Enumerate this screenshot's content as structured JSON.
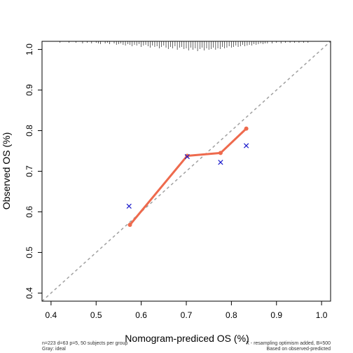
{
  "chart_data": {
    "type": "line",
    "title": "",
    "xlabel": "Nomogram-prediced OS (%)",
    "ylabel": "Observed OS (%)",
    "xlim": [
      0.38,
      1.02
    ],
    "ylim": [
      0.38,
      1.02
    ],
    "xticks": [
      0.4,
      0.5,
      0.6,
      0.7,
      0.8,
      0.9,
      1.0
    ],
    "xtick_labels": [
      "0.4",
      "0.5",
      "0.6",
      "0.7",
      "0.8",
      "0.9",
      "1.0"
    ],
    "yticks": [
      0.4,
      0.5,
      0.6,
      0.7,
      0.8,
      0.9,
      1.0
    ],
    "ytick_labels": [
      "0.4",
      "0.5",
      "0.6",
      "0.7",
      "0.8",
      "0.9",
      "1.0"
    ],
    "grid": false,
    "series": [
      {
        "style": "solid line with points",
        "color": "#ee6a4d",
        "x": [
          0.575,
          0.702,
          0.776,
          0.833
        ],
        "y": [
          0.568,
          0.738,
          0.745,
          0.805
        ]
      },
      {
        "style": "x markers",
        "color": "#1a1acc",
        "x": [
          0.573,
          0.702,
          0.776,
          0.833
        ],
        "y": [
          0.614,
          0.736,
          0.722,
          0.763
        ]
      },
      {
        "style": "dashed ideal line",
        "color": "#a0a0a0",
        "x": [
          0.38,
          1.02
        ],
        "y": [
          0.38,
          1.02
        ]
      }
    ],
    "rug_x": [
      0.42,
      0.44,
      0.455,
      0.47,
      0.48,
      0.49,
      0.5,
      0.505,
      0.51,
      0.52,
      0.525,
      0.53,
      0.54,
      0.545,
      0.55,
      0.555,
      0.56,
      0.565,
      0.57,
      0.575,
      0.58,
      0.585,
      0.59,
      0.595,
      0.6,
      0.605,
      0.61,
      0.615,
      0.62,
      0.625,
      0.63,
      0.635,
      0.64,
      0.645,
      0.65,
      0.655,
      0.66,
      0.665,
      0.67,
      0.675,
      0.68,
      0.685,
      0.69,
      0.695,
      0.7,
      0.705,
      0.71,
      0.715,
      0.72,
      0.725,
      0.73,
      0.735,
      0.74,
      0.745,
      0.75,
      0.755,
      0.76,
      0.765,
      0.77,
      0.775,
      0.78,
      0.785,
      0.79,
      0.795,
      0.8,
      0.805,
      0.81,
      0.815,
      0.82,
      0.825,
      0.83,
      0.835,
      0.84,
      0.845,
      0.85,
      0.855,
      0.86,
      0.865,
      0.87,
      0.875,
      0.88,
      0.89,
      0.9,
      0.91,
      0.92,
      0.93,
      0.94,
      0.95,
      0.96,
      0.97
    ],
    "rug_h": [
      2,
      2,
      2,
      3,
      2,
      3,
      2,
      3,
      4,
      3,
      2,
      4,
      3,
      5,
      4,
      3,
      5,
      6,
      4,
      5,
      7,
      5,
      6,
      4,
      8,
      6,
      5,
      7,
      9,
      6,
      8,
      7,
      10,
      8,
      6,
      9,
      11,
      8,
      10,
      7,
      12,
      9,
      8,
      11,
      10,
      13,
      9,
      12,
      10,
      14,
      11,
      9,
      13,
      10,
      12,
      11,
      9,
      12,
      10,
      11,
      8,
      10,
      9,
      7,
      9,
      8,
      6,
      8,
      7,
      5,
      7,
      6,
      5,
      6,
      4,
      5,
      4,
      3,
      4,
      3,
      3,
      3,
      2,
      3,
      2,
      2,
      2,
      2,
      2,
      2
    ]
  },
  "notes": {
    "left_line1": "n=223 d=63 p=5, 50 subjects per group",
    "left_line2": "Gray: ideal",
    "right_line1": "X - resampling optimism added, B=500",
    "right_line2": "Based on observed-predicted"
  }
}
